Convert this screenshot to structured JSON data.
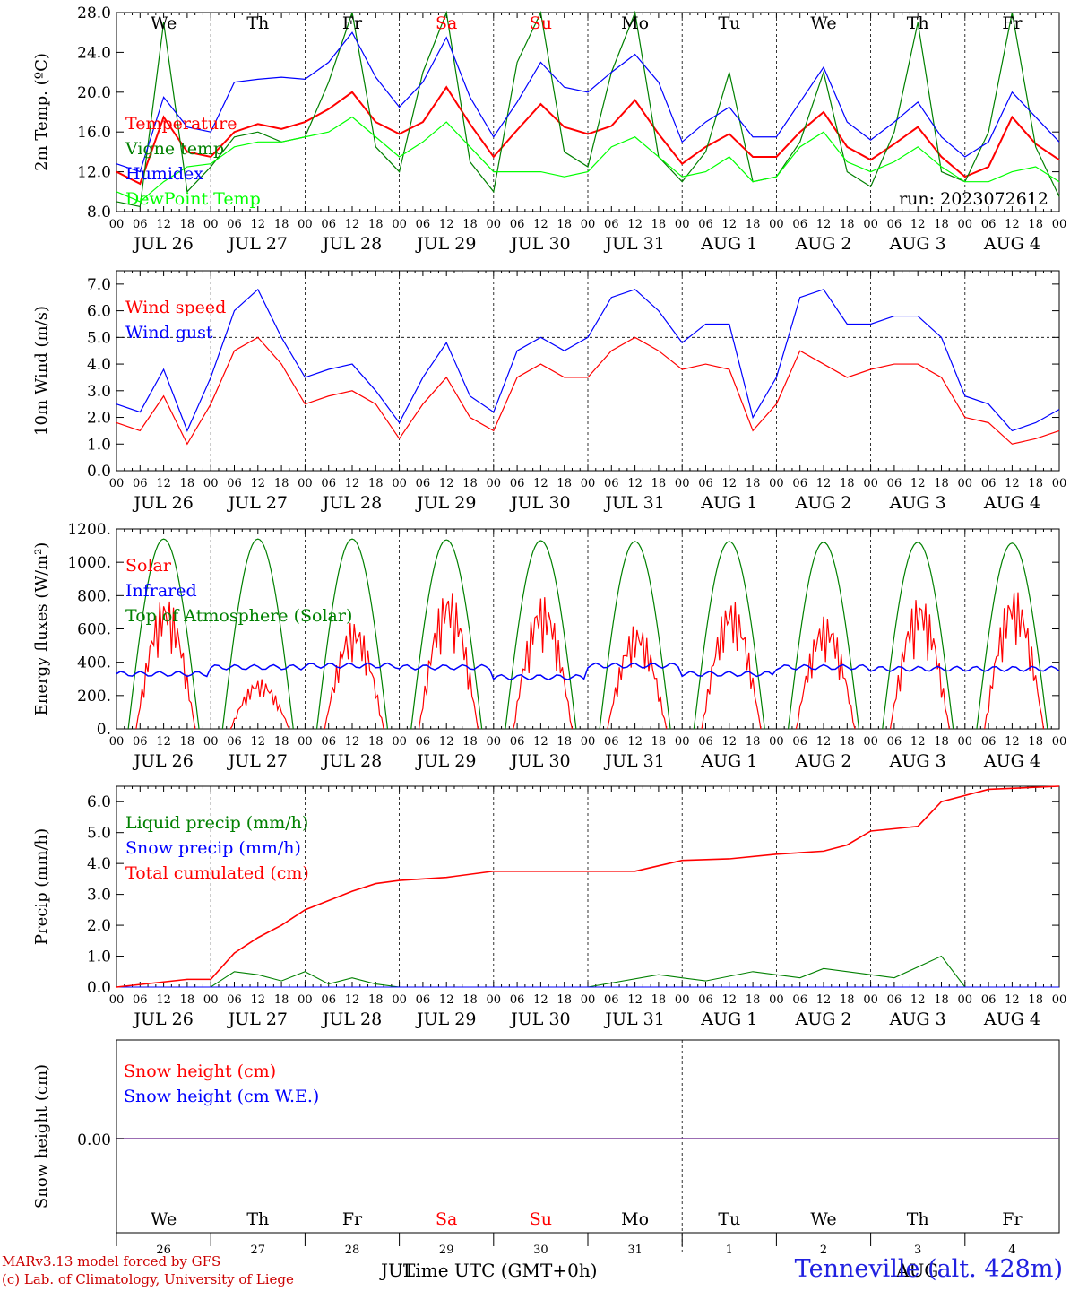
{
  "run_label": "run: 2023072612",
  "footer": {
    "line1": "MARv3.13 model forced by GFS",
    "line2": "(c) Lab. of Climatology, University of Liege",
    "station": "Tenneville (alt. 428m)",
    "x_title": "Time UTC (GMT+0h)",
    "month_jul": "JUL",
    "month_aug": "AUG"
  },
  "colors": {
    "temperature": "#ff0000",
    "vigne": "#008000",
    "humidex": "#0000ff",
    "dewpoint": "#00ff00",
    "precip_liquid": "#008000",
    "snow_cm": "#ff0000",
    "snow_we": "#0000ff",
    "weekend_day": "#ff0000"
  },
  "days": [
    {
      "dow": "We",
      "date": "JUL 26",
      "num": "26",
      "weekend": false
    },
    {
      "dow": "Th",
      "date": "JUL 27",
      "num": "27",
      "weekend": false
    },
    {
      "dow": "Fr",
      "date": "JUL 28",
      "num": "28",
      "weekend": false
    },
    {
      "dow": "Sa",
      "date": "JUL 29",
      "num": "29",
      "weekend": true
    },
    {
      "dow": "Su",
      "date": "JUL 30",
      "num": "30",
      "weekend": true
    },
    {
      "dow": "Mo",
      "date": "JUL 31",
      "num": "31",
      "weekend": false
    },
    {
      "dow": "Tu",
      "date": "AUG  1",
      "num": "1",
      "weekend": false
    },
    {
      "dow": "We",
      "date": "AUG  2",
      "num": "2",
      "weekend": false
    },
    {
      "dow": "Th",
      "date": "AUG  3",
      "num": "3",
      "weekend": false
    },
    {
      "dow": "Fr",
      "date": "AUG  4",
      "num": "4",
      "weekend": false
    }
  ],
  "hour_labels": [
    "00",
    "06",
    "12",
    "18"
  ],
  "chart_data": [
    {
      "type": "line",
      "ylabel": "2m Temp. (ºC)",
      "ylim": [
        8,
        28
      ],
      "yticks": [
        "8.0",
        "12.0",
        "16.0",
        "20.0",
        "24.0",
        "28.0"
      ],
      "x_unit": "hours from JUL 26 00 UTC",
      "series": [
        {
          "name": "Temperature",
          "color": "#ff0000",
          "x": [
            0,
            6,
            12,
            18,
            24,
            30,
            36,
            42,
            48,
            54,
            60,
            66,
            72,
            78,
            84,
            90,
            96,
            102,
            108,
            114,
            120,
            126,
            132,
            138,
            144,
            150,
            156,
            162,
            168,
            174,
            180,
            186,
            192,
            198,
            204,
            210,
            216,
            222,
            228,
            234,
            240
          ],
          "values": [
            12.0,
            10.8,
            17.5,
            14.0,
            13.5,
            16.0,
            16.8,
            16.3,
            17.0,
            18.3,
            20.0,
            17.0,
            15.8,
            17.0,
            20.5,
            16.8,
            13.5,
            16.2,
            18.8,
            16.5,
            15.8,
            16.6,
            19.2,
            15.8,
            12.8,
            14.5,
            15.8,
            13.5,
            13.5,
            16.0,
            18.0,
            14.5,
            13.2,
            14.8,
            16.5,
            13.5,
            11.5,
            12.5,
            17.5,
            14.8,
            13.2
          ]
        },
        {
          "name": "Vigne temp",
          "color": "#008000",
          "x": [
            0,
            6,
            12,
            18,
            24,
            30,
            36,
            42,
            48,
            54,
            60,
            66,
            72,
            78,
            84,
            90,
            96,
            102,
            108,
            114,
            120,
            126,
            132,
            138,
            144,
            150,
            156,
            162,
            168,
            174,
            180,
            186,
            192,
            198,
            204,
            210,
            216,
            222,
            228,
            234,
            240
          ],
          "values": [
            9.0,
            8.5,
            27.0,
            10.0,
            12.5,
            15.5,
            16.0,
            15.0,
            15.5,
            21.0,
            28.0,
            14.5,
            12.0,
            22.0,
            28.0,
            13.0,
            10.0,
            23.0,
            28.0,
            14.0,
            12.5,
            22.0,
            28.0,
            13.5,
            11.0,
            14.0,
            22.0,
            11.0,
            11.5,
            15.0,
            22.0,
            12.0,
            10.5,
            16.0,
            27.0,
            12.0,
            11.0,
            16.0,
            28.0,
            14.5,
            9.5
          ]
        },
        {
          "name": "Humidex",
          "color": "#0000ff",
          "x": [
            0,
            6,
            12,
            18,
            24,
            30,
            36,
            42,
            48,
            54,
            60,
            66,
            72,
            78,
            84,
            90,
            96,
            102,
            108,
            114,
            120,
            126,
            132,
            138,
            144,
            150,
            156,
            162,
            168,
            174,
            180,
            186,
            192,
            198,
            204,
            210,
            216,
            222,
            228,
            234,
            240
          ],
          "values": [
            12.8,
            12.0,
            19.5,
            16.5,
            16.0,
            21.0,
            21.3,
            21.5,
            21.3,
            23.0,
            26.0,
            21.5,
            18.5,
            21.0,
            25.5,
            19.5,
            15.5,
            19.0,
            23.0,
            20.5,
            20.0,
            22.0,
            23.8,
            21.0,
            15.0,
            17.0,
            18.5,
            15.5,
            15.5,
            19.0,
            22.5,
            17.0,
            15.2,
            17.0,
            19.0,
            15.5,
            13.5,
            15.0,
            20.0,
            17.5,
            15.0
          ]
        },
        {
          "name": "DewPoint Temp",
          "color": "#00ff00",
          "x": [
            0,
            6,
            12,
            18,
            24,
            30,
            36,
            42,
            48,
            54,
            60,
            66,
            72,
            78,
            84,
            90,
            96,
            102,
            108,
            114,
            120,
            126,
            132,
            138,
            144,
            150,
            156,
            162,
            168,
            174,
            180,
            186,
            192,
            198,
            204,
            210,
            216,
            222,
            228,
            234,
            240
          ],
          "values": [
            10.0,
            9.0,
            11.0,
            12.5,
            12.8,
            14.5,
            15.0,
            15.0,
            15.5,
            16.0,
            17.5,
            15.5,
            13.5,
            15.0,
            17.0,
            14.5,
            12.0,
            12.0,
            12.0,
            11.5,
            12.0,
            14.5,
            15.5,
            13.5,
            11.5,
            12.0,
            13.5,
            11.0,
            11.5,
            14.5,
            16.0,
            13.0,
            12.0,
            13.0,
            14.5,
            12.5,
            11.0,
            11.0,
            12.0,
            12.5,
            11.0
          ]
        }
      ]
    },
    {
      "type": "line",
      "ylabel": "10m Wind (m/s)",
      "ylim": [
        0,
        7.5
      ],
      "yticks": [
        "0.0",
        "1.0",
        "2.0",
        "3.0",
        "4.0",
        "5.0",
        "6.0",
        "7.0"
      ],
      "reference_line": 5.0,
      "x_unit": "hours from JUL 26 00 UTC",
      "series": [
        {
          "name": "Wind speed",
          "color": "#ff0000",
          "x": [
            0,
            6,
            12,
            18,
            24,
            30,
            36,
            42,
            48,
            54,
            60,
            66,
            72,
            78,
            84,
            90,
            96,
            102,
            108,
            114,
            120,
            126,
            132,
            138,
            144,
            150,
            156,
            162,
            168,
            174,
            180,
            186,
            192,
            198,
            204,
            210,
            216,
            222,
            228,
            234,
            240
          ],
          "values": [
            1.8,
            1.5,
            2.8,
            1.0,
            2.5,
            4.5,
            5.0,
            4.0,
            2.5,
            2.8,
            3.0,
            2.5,
            1.2,
            2.5,
            3.5,
            2.0,
            1.5,
            3.5,
            4.0,
            3.5,
            3.5,
            4.5,
            5.0,
            4.5,
            3.8,
            4.0,
            3.8,
            1.5,
            2.5,
            4.5,
            4.0,
            3.5,
            3.8,
            4.0,
            4.0,
            3.5,
            2.0,
            1.8,
            1.0,
            1.2,
            1.5
          ]
        },
        {
          "name": "Wind gust",
          "color": "#0000ff",
          "x": [
            0,
            6,
            12,
            18,
            24,
            30,
            36,
            42,
            48,
            54,
            60,
            66,
            72,
            78,
            84,
            90,
            96,
            102,
            108,
            114,
            120,
            126,
            132,
            138,
            144,
            150,
            156,
            162,
            168,
            174,
            180,
            186,
            192,
            198,
            204,
            210,
            216,
            222,
            228,
            234,
            240
          ],
          "values": [
            2.5,
            2.2,
            3.8,
            1.5,
            3.5,
            6.0,
            6.8,
            5.0,
            3.5,
            3.8,
            4.0,
            3.0,
            1.8,
            3.5,
            4.8,
            2.8,
            2.2,
            4.5,
            5.0,
            4.5,
            5.0,
            6.5,
            6.8,
            6.0,
            4.8,
            5.5,
            5.5,
            2.0,
            3.5,
            6.5,
            6.8,
            5.5,
            5.5,
            5.8,
            5.8,
            5.0,
            2.8,
            2.5,
            1.5,
            1.8,
            2.3
          ]
        }
      ]
    },
    {
      "type": "line",
      "ylabel": "Energy fluxes (W/m²)",
      "ylim": [
        0,
        1200
      ],
      "yticks": [
        "0.",
        "200.",
        "400.",
        "600.",
        "800.",
        "1000.",
        "1200."
      ],
      "series": [
        {
          "name": "Solar",
          "color": "#ff0000",
          "daily_peak": [
            800,
            300,
            650,
            840,
            800,
            630,
            780,
            680,
            800,
            840
          ]
        },
        {
          "name": "Infrared",
          "color": "#0000ff",
          "daily_mean": [
            330,
            370,
            380,
            370,
            310,
            380,
            330,
            370,
            360,
            360
          ]
        },
        {
          "name": "Top of Atmosphere (Solar)",
          "color": "#008000",
          "daily_peak": [
            1140,
            1140,
            1140,
            1135,
            1130,
            1125,
            1125,
            1120,
            1120,
            1115
          ]
        }
      ]
    },
    {
      "type": "line",
      "ylabel": "Precip (mm/h)",
      "ylim": [
        0,
        6.5
      ],
      "yticks": [
        "0.0",
        "1.0",
        "2.0",
        "3.0",
        "4.0",
        "5.0",
        "6.0"
      ],
      "x_unit": "hours from JUL 26 00 UTC",
      "series": [
        {
          "name": "Liquid precip (mm/h)",
          "color": "#008000",
          "x": [
            0,
            24,
            30,
            36,
            42,
            48,
            54,
            60,
            66,
            72,
            78,
            84,
            90,
            120,
            138,
            150,
            162,
            174,
            180,
            192,
            198,
            210,
            216,
            240
          ],
          "values": [
            0,
            0,
            0.5,
            0.4,
            0.2,
            0.5,
            0.1,
            0.3,
            0.1,
            0,
            0,
            0,
            0,
            0,
            0.4,
            0.2,
            0.5,
            0.3,
            0.6,
            0.4,
            0.3,
            1.0,
            0,
            0
          ]
        },
        {
          "name": "Snow precip (mm/h)",
          "color": "#0000ff",
          "x": [
            0,
            240
          ],
          "values": [
            0,
            0
          ]
        },
        {
          "name": "Total cumulated (cm)",
          "color": "#ff0000",
          "x": [
            0,
            18,
            24,
            30,
            36,
            42,
            48,
            54,
            60,
            66,
            72,
            84,
            96,
            120,
            132,
            144,
            156,
            168,
            180,
            186,
            192,
            204,
            210,
            222,
            240
          ],
          "values": [
            0,
            0.25,
            0.25,
            1.1,
            1.6,
            2.0,
            2.5,
            2.8,
            3.1,
            3.35,
            3.45,
            3.55,
            3.75,
            3.75,
            3.75,
            4.1,
            4.15,
            4.3,
            4.4,
            4.6,
            5.05,
            5.2,
            6.0,
            6.4,
            6.5
          ]
        }
      ]
    },
    {
      "type": "line",
      "ylabel": "Snow height (cm)",
      "yticks": [
        "0.00"
      ],
      "series": [
        {
          "name": "Snow height (cm)",
          "color": "#ff0000",
          "values": [
            0,
            0
          ]
        },
        {
          "name": "Snow height (cm W.E.)",
          "color": "#0000ff",
          "values": [
            0,
            0
          ]
        }
      ]
    }
  ]
}
